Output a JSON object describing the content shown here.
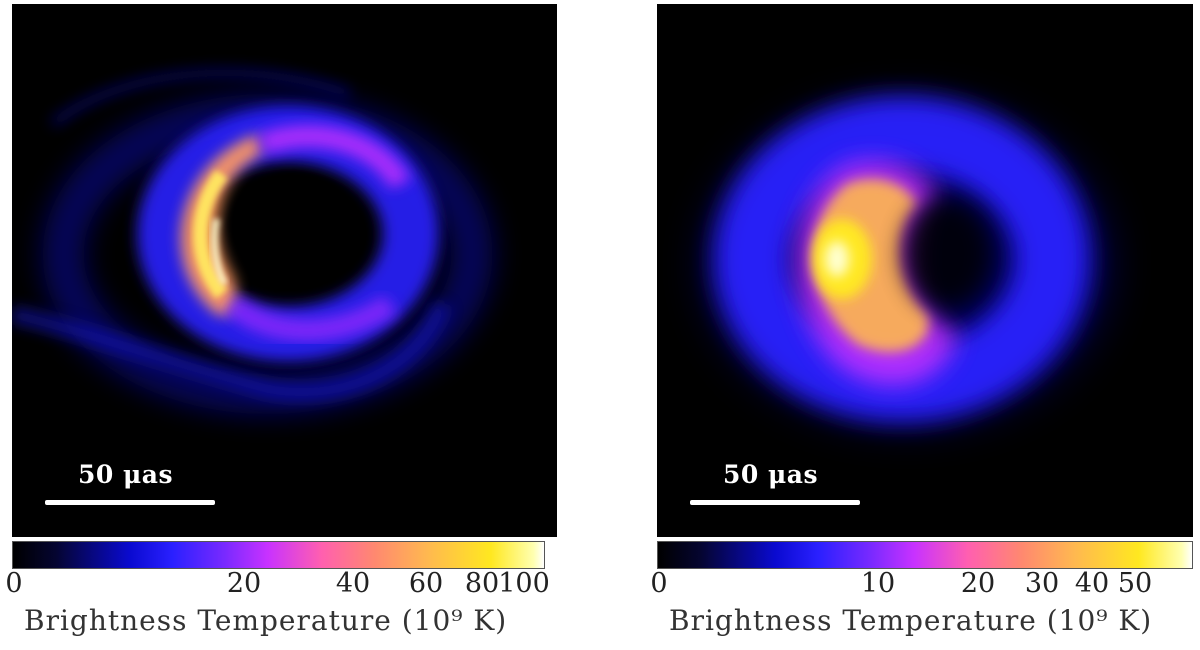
{
  "panels": [
    {
      "scalebar_label": "50 μas",
      "colorbar": {
        "ticks": [
          "0",
          "20",
          "40",
          "60",
          "80",
          "100"
        ],
        "label": "Brightness Temperature (10⁹ K)"
      }
    },
    {
      "scalebar_label": "50 μas",
      "colorbar": {
        "ticks": [
          "0",
          "10",
          "20",
          "30",
          "40",
          "50"
        ],
        "label": "Brightness Temperature (10⁹ K)"
      }
    }
  ],
  "colors": {
    "background": "#000000",
    "scalebar": "#ffffff",
    "colormap": [
      "#000000",
      "#0a0ad0",
      "#7a2aff",
      "#ff5fb0",
      "#ffb850",
      "#ffe820",
      "#ffffff"
    ]
  }
}
